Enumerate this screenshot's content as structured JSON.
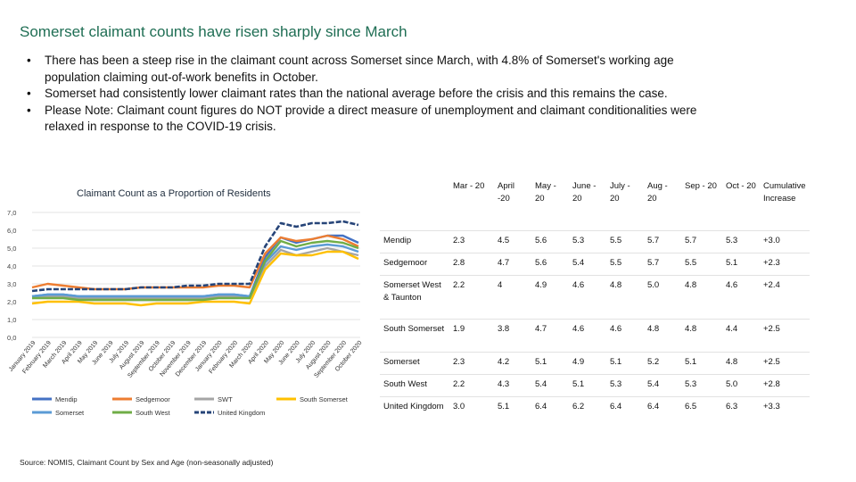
{
  "title": "Somerset claimant counts have risen sharply since March",
  "bullets": [
    "There has been a steep rise in the claimant count across Somerset since March, with 4.8% of Somerset's working age population claiming out-of-work benefits in October.",
    "Somerset had consistently lower claimant rates than the national average before the crisis and this remains the case.",
    "Please Note: Claimant count figures do NOT provide a direct measure of unemployment and claimant conditionalities were relaxed in response to the COVID-19 crisis."
  ],
  "source": "Source: NOMIS, Claimant Count by Sex and Age (non-seasonally adjusted)",
  "table": {
    "headers": [
      "",
      "Mar - 20",
      "April -20",
      "May - 20",
      "June - 20",
      "July - 20",
      "Aug - 20",
      "Sep - 20",
      "Oct - 20",
      "Cumulative Increase"
    ],
    "rows": [
      [
        "Mendip",
        "2.3",
        "4.5",
        "5.6",
        "5.3",
        "5.5",
        "5.7",
        "5.7",
        "5.3",
        "+3.0"
      ],
      [
        "Sedgemoor",
        "2.8",
        "4.7",
        "5.6",
        "5.4",
        "5.5",
        "5.7",
        "5.5",
        "5.1",
        "+2.3"
      ],
      [
        "Somerset West & Taunton",
        "2.2",
        "4",
        "4.9",
        "4.6",
        "4.8",
        "5.0",
        "4.8",
        "4.6",
        "+2.4"
      ],
      [
        "South Somerset",
        "1.9",
        "3.8",
        "4.7",
        "4.6",
        "4.6",
        "4.8",
        "4.8",
        "4.4",
        "+2.5"
      ],
      [
        "Somerset",
        "2.3",
        "4.2",
        "5.1",
        "4.9",
        "5.1",
        "5.2",
        "5.1",
        "4.8",
        "+2.5"
      ],
      [
        "South West",
        "2.2",
        "4.3",
        "5.4",
        "5.1",
        "5.3",
        "5.4",
        "5.3",
        "5.0",
        "+2.8"
      ],
      [
        "United Kingdom",
        "3.0",
        "5.1",
        "6.4",
        "6.2",
        "6.4",
        "6.4",
        "6.5",
        "6.3",
        "+3.3"
      ]
    ]
  },
  "chart_data": {
    "type": "line",
    "title": "Claimant Count as a Proportion of Residents",
    "ylim": [
      0,
      7
    ],
    "y_ticks": [
      "0,0",
      "1,0",
      "2,0",
      "3,0",
      "4,0",
      "5,0",
      "6,0",
      "7,0"
    ],
    "categories": [
      "January 2019",
      "February 2019",
      "March 2019",
      "April 2019",
      "May 2019",
      "June 2019",
      "July 2019",
      "August 2019",
      "September 2019",
      "October 2019",
      "November 2019",
      "December 2019",
      "January 2020",
      "February 2020",
      "March 2020",
      "April 2020",
      "May 2020",
      "June 2020",
      "July 2020",
      "August 2020",
      "September 2020",
      "October 2020"
    ],
    "grid": true,
    "legend_position": "bottom",
    "series": [
      {
        "name": "Mendip",
        "color": "#4472c4",
        "values": [
          2.3,
          2.4,
          2.4,
          2.3,
          2.3,
          2.3,
          2.3,
          2.3,
          2.3,
          2.3,
          2.3,
          2.3,
          2.4,
          2.4,
          2.3,
          4.5,
          5.6,
          5.3,
          5.5,
          5.7,
          5.7,
          5.3
        ]
      },
      {
        "name": "Sedgemoor",
        "color": "#ed7d31",
        "values": [
          2.8,
          3.0,
          2.9,
          2.8,
          2.7,
          2.7,
          2.7,
          2.8,
          2.8,
          2.8,
          2.8,
          2.8,
          2.9,
          2.9,
          2.8,
          4.7,
          5.6,
          5.4,
          5.5,
          5.7,
          5.5,
          5.1
        ]
      },
      {
        "name": "SWT",
        "color": "#a5a5a5",
        "values": [
          2.2,
          2.3,
          2.3,
          2.2,
          2.2,
          2.2,
          2.2,
          2.2,
          2.2,
          2.2,
          2.2,
          2.2,
          2.3,
          2.3,
          2.2,
          4.0,
          4.9,
          4.6,
          4.8,
          5.0,
          4.8,
          4.6
        ]
      },
      {
        "name": "South Somerset",
        "color": "#ffc000",
        "values": [
          1.9,
          2.0,
          2.0,
          2.0,
          1.9,
          1.9,
          1.9,
          1.8,
          1.9,
          1.9,
          1.9,
          2.0,
          2.0,
          2.0,
          1.9,
          3.8,
          4.7,
          4.6,
          4.6,
          4.8,
          4.8,
          4.4
        ]
      },
      {
        "name": "Somerset",
        "color": "#5b9bd5",
        "values": [
          2.3,
          2.4,
          2.4,
          2.3,
          2.3,
          2.3,
          2.3,
          2.3,
          2.3,
          2.3,
          2.3,
          2.3,
          2.4,
          2.4,
          2.3,
          4.2,
          5.1,
          4.9,
          5.1,
          5.2,
          5.1,
          4.8
        ]
      },
      {
        "name": "South West",
        "color": "#70ad47",
        "values": [
          2.2,
          2.2,
          2.2,
          2.1,
          2.1,
          2.1,
          2.1,
          2.1,
          2.1,
          2.1,
          2.1,
          2.1,
          2.2,
          2.2,
          2.2,
          4.3,
          5.4,
          5.1,
          5.3,
          5.4,
          5.3,
          5.0
        ]
      },
      {
        "name": "United Kingdom",
        "color": "#264478",
        "dashed": true,
        "values": [
          2.6,
          2.7,
          2.7,
          2.7,
          2.7,
          2.7,
          2.7,
          2.8,
          2.8,
          2.8,
          2.9,
          2.9,
          3.0,
          3.0,
          3.0,
          5.1,
          6.4,
          6.2,
          6.4,
          6.4,
          6.5,
          6.3
        ]
      }
    ]
  }
}
